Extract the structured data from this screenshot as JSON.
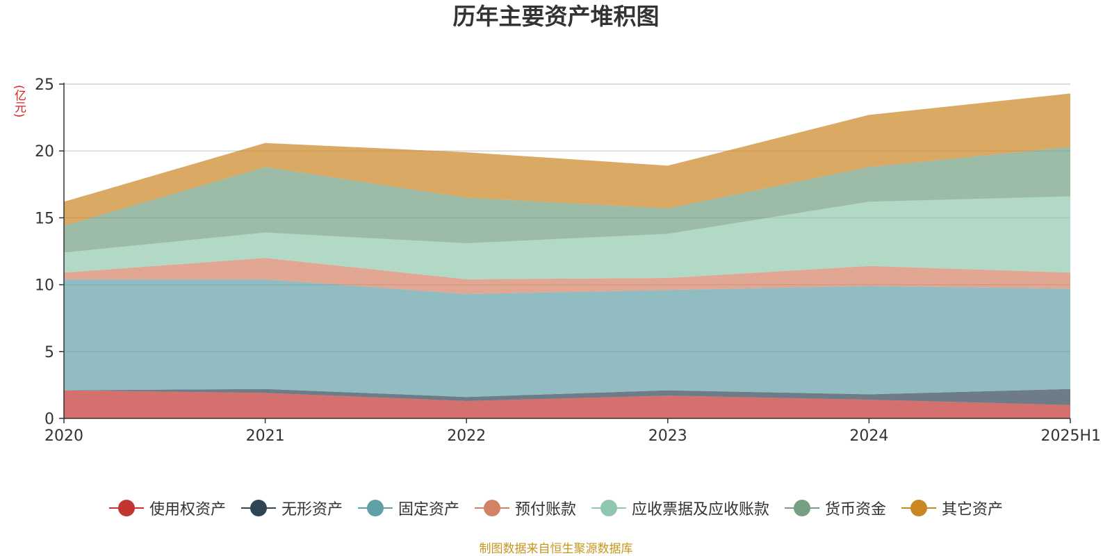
{
  "chart_data": {
    "type": "area",
    "stacked": true,
    "title": "历年主要资产堆积图",
    "ylabel": "(亿元)",
    "xlabel": "",
    "categories": [
      "2020",
      "2021",
      "2022",
      "2023",
      "2024",
      "2025H1"
    ],
    "ylim": [
      0,
      25
    ],
    "yticks": [
      0,
      5,
      10,
      15,
      20,
      25
    ],
    "grid": true,
    "legend_position": "bottom",
    "series": [
      {
        "name": "使用权资产",
        "color": "#c23531",
        "values": [
          2.1,
          1.9,
          1.3,
          1.7,
          1.4,
          1.0
        ]
      },
      {
        "name": "无形资产",
        "color": "#2f4554",
        "values": [
          0.0,
          0.3,
          0.3,
          0.4,
          0.4,
          1.2
        ]
      },
      {
        "name": "固定资产",
        "color": "#61a0a8",
        "values": [
          8.3,
          8.2,
          7.7,
          7.5,
          8.1,
          7.5
        ]
      },
      {
        "name": "预付账款",
        "color": "#d48265",
        "values": [
          0.5,
          1.6,
          1.1,
          0.9,
          1.5,
          1.2
        ]
      },
      {
        "name": "应收票据及应收账款",
        "color": "#91c7ae",
        "values": [
          1.5,
          1.9,
          2.7,
          3.3,
          4.8,
          5.7
        ]
      },
      {
        "name": "货币资金",
        "color": "#749f83",
        "values": [
          2.0,
          4.9,
          3.4,
          1.9,
          2.6,
          3.7
        ]
      },
      {
        "name": "其它资产",
        "color": "#ca8622",
        "values": [
          1.8,
          1.8,
          3.4,
          3.2,
          3.9,
          4.0
        ]
      }
    ],
    "source": "制图数据来自恒生聚源数据库"
  }
}
